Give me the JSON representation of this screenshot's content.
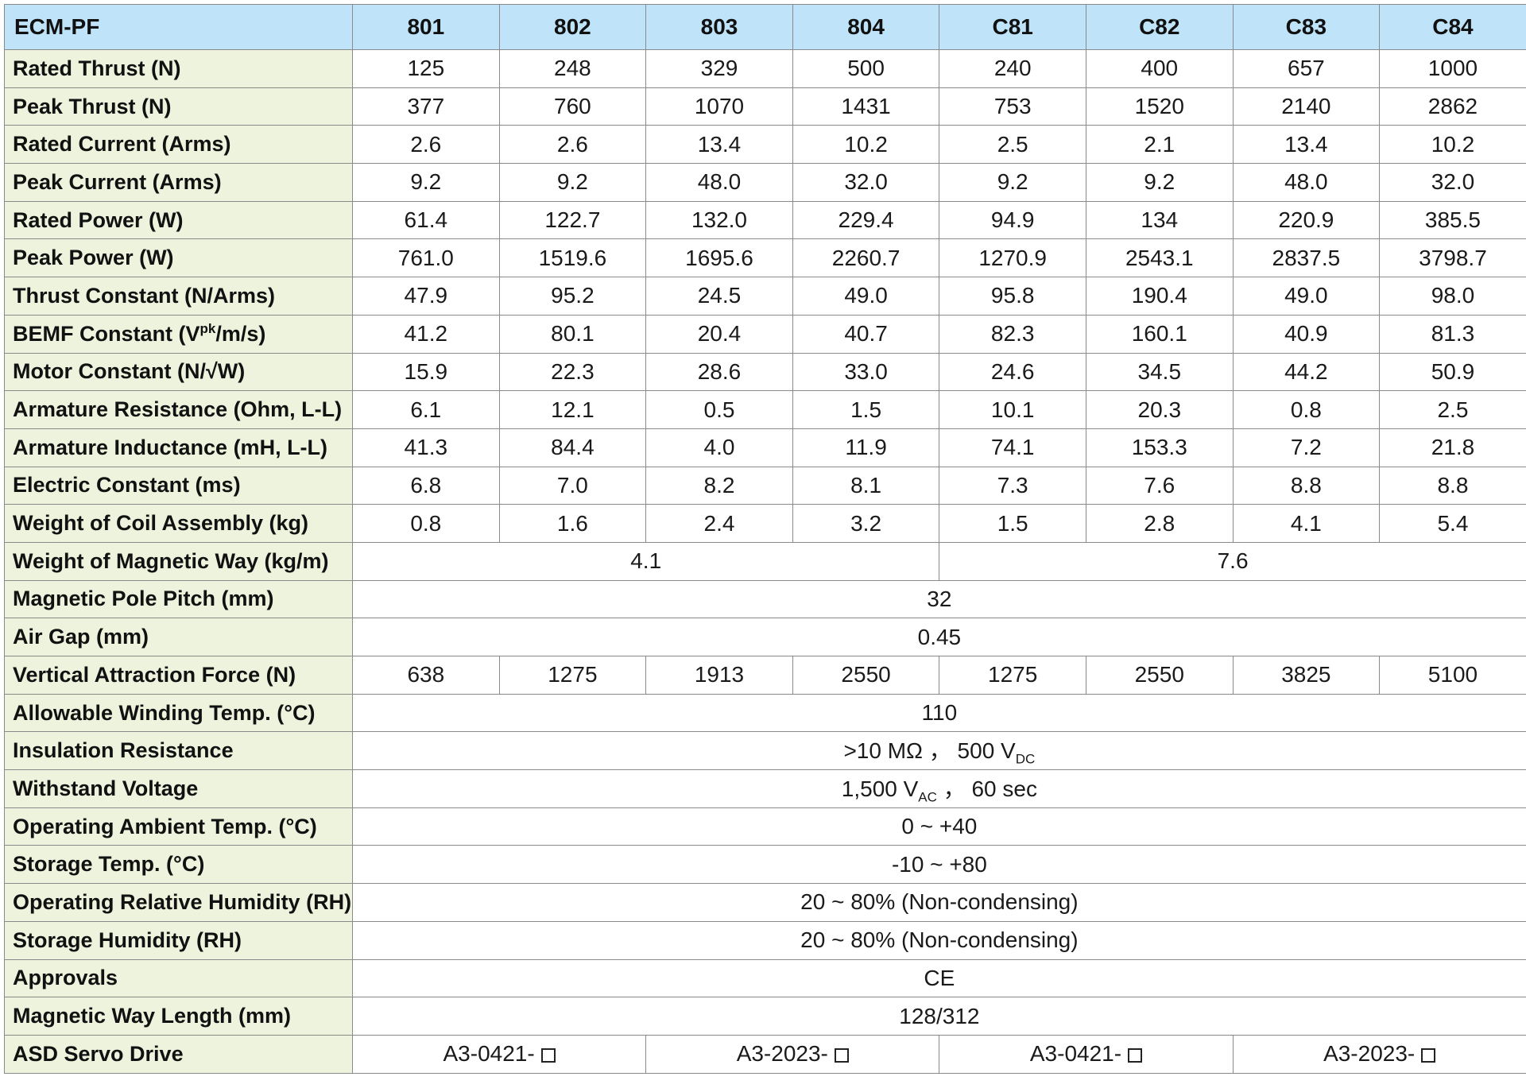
{
  "header": {
    "corner": "ECM-PF",
    "models": [
      "801",
      "802",
      "803",
      "804",
      "C81",
      "C82",
      "C83",
      "C84"
    ]
  },
  "rows": {
    "rated_thrust": {
      "label": "Rated Thrust (N)",
      "values": [
        "125",
        "248",
        "329",
        "500",
        "240",
        "400",
        "657",
        "1000"
      ]
    },
    "peak_thrust": {
      "label": "Peak Thrust (N)",
      "values": [
        "377",
        "760",
        "1070",
        "1431",
        "753",
        "1520",
        "2140",
        "2862"
      ]
    },
    "rated_current": {
      "label": "Rated Current (Arms)",
      "values": [
        "2.6",
        "2.6",
        "13.4",
        "10.2",
        "2.5",
        "2.1",
        "13.4",
        "10.2"
      ]
    },
    "peak_current": {
      "label": "Peak Current (Arms)",
      "values": [
        "9.2",
        "9.2",
        "48.0",
        "32.0",
        "9.2",
        "9.2",
        "48.0",
        "32.0"
      ]
    },
    "rated_power": {
      "label": "Rated Power (W)",
      "values": [
        "61.4",
        "122.7",
        "132.0",
        "229.4",
        "94.9",
        "134",
        "220.9",
        "385.5"
      ]
    },
    "peak_power": {
      "label": "Peak Power (W)",
      "values": [
        "761.0",
        "1519.6",
        "1695.6",
        "2260.7",
        "1270.9",
        "2543.1",
        "2837.5",
        "3798.7"
      ]
    },
    "thrust_constant": {
      "label": "Thrust Constant (N/Arms)",
      "values": [
        "47.9",
        "95.2",
        "24.5",
        "49.0",
        "95.8",
        "190.4",
        "49.0",
        "98.0"
      ]
    },
    "bemf_constant": {
      "label_pre": "BEMF Constant (V",
      "label_sup": "pk",
      "label_post": "/m/s)",
      "values": [
        "41.2",
        "80.1",
        "20.4",
        "40.7",
        "82.3",
        "160.1",
        "40.9",
        "81.3"
      ]
    },
    "motor_constant": {
      "label": "Motor Constant (N/√W)",
      "values": [
        "15.9",
        "22.3",
        "28.6",
        "33.0",
        "24.6",
        "34.5",
        "44.2",
        "50.9"
      ]
    },
    "armature_resistance": {
      "label": "Armature Resistance (Ohm, L-L)",
      "values": [
        "6.1",
        "12.1",
        "0.5",
        "1.5",
        "10.1",
        "20.3",
        "0.8",
        "2.5"
      ]
    },
    "armature_inductance": {
      "label": "Armature Inductance (mH, L-L)",
      "values": [
        "41.3",
        "84.4",
        "4.0",
        "11.9",
        "74.1",
        "153.3",
        "7.2",
        "21.8"
      ]
    },
    "electric_constant": {
      "label": "Electric Constant (ms)",
      "values": [
        "6.8",
        "7.0",
        "8.2",
        "8.1",
        "7.3",
        "7.6",
        "8.8",
        "8.8"
      ]
    },
    "coil_weight": {
      "label": "Weight of Coil Assembly (kg)",
      "values": [
        "0.8",
        "1.6",
        "2.4",
        "3.2",
        "1.5",
        "2.8",
        "4.1",
        "5.4"
      ]
    },
    "magnetic_way_weight": {
      "label": "Weight of Magnetic Way (kg/m)",
      "values": [
        "4.1",
        "7.6"
      ]
    },
    "pole_pitch": {
      "label": "Magnetic Pole Pitch (mm)",
      "value": "32"
    },
    "air_gap": {
      "label": "Air Gap (mm)",
      "value": "0.45"
    },
    "vertical_attraction": {
      "label": "Vertical Attraction Force (N)",
      "values": [
        "638",
        "1275",
        "1913",
        "2550",
        "1275",
        "2550",
        "3825",
        "5100"
      ]
    },
    "winding_temp": {
      "label": "Allowable Winding Temp. (°C)",
      "value": "110"
    },
    "insulation_resistance": {
      "label": "Insulation Resistance",
      "value_pre": ">10 MΩ ， 500 V",
      "value_sub": "DC"
    },
    "withstand_voltage": {
      "label": "Withstand Voltage",
      "value_pre": "1,500 V",
      "value_sub": "AC",
      "value_post": " ， 60 sec"
    },
    "operating_temp": {
      "label": "Operating Ambient Temp. (°C)",
      "value": "0 ~ +40"
    },
    "storage_temp": {
      "label": "Storage Temp. (°C)",
      "value": "-10 ~ +80"
    },
    "operating_humidity": {
      "label": "Operating Relative Humidity (RH)",
      "value": "20 ~ 80% (Non-condensing)"
    },
    "storage_humidity": {
      "label": "Storage Humidity (RH)",
      "value": "20 ~ 80% (Non-condensing)"
    },
    "approvals": {
      "label": "Approvals",
      "value": "CE"
    },
    "magnetic_way_length": {
      "label": "Magnetic Way Length (mm)",
      "value": "128/312"
    },
    "servo_drive": {
      "label": "ASD Servo Drive",
      "values": [
        "A3-0421-",
        "A3-2023-",
        "A3-0421-",
        "A3-2023-"
      ],
      "box_icon": "square-box-icon"
    }
  },
  "colors": {
    "header_bg": "#bfe3f8",
    "label_bg": "#eef3dd",
    "border": "#8a8a8a"
  }
}
